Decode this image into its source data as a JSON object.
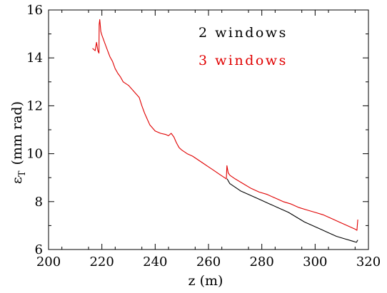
{
  "chart_data": {
    "type": "line",
    "xlabel": "z (m)",
    "ylabel_main": "ε",
    "ylabel_sub": "T",
    "ylabel_units": "(mm rad)",
    "xlim": [
      200,
      320
    ],
    "ylim": [
      6,
      16
    ],
    "xticks": [
      200,
      220,
      240,
      260,
      280,
      300,
      320
    ],
    "yticks": [
      6,
      8,
      10,
      12,
      14,
      16
    ],
    "legend_placement": "top-right",
    "series": [
      {
        "name": "2 windows",
        "color": "#000000",
        "x": [
          267,
          268,
          270,
          272,
          275,
          278,
          280,
          283,
          286,
          290,
          293,
          296,
          299,
          302,
          305,
          308,
          311,
          314,
          315.5,
          316
        ],
        "y": [
          8.95,
          8.75,
          8.6,
          8.45,
          8.3,
          8.15,
          8.05,
          7.9,
          7.75,
          7.55,
          7.35,
          7.15,
          7.0,
          6.85,
          6.7,
          6.55,
          6.45,
          6.35,
          6.3,
          6.4
        ]
      },
      {
        "name": "3 windows",
        "color": "#e00000",
        "x": [
          216.5,
          217.5,
          218,
          218.5,
          218.9,
          219.0,
          219.2,
          219.6,
          220,
          221,
          222,
          223,
          224,
          225,
          226,
          227,
          228,
          230,
          232,
          234,
          235,
          236,
          237,
          238,
          240,
          242,
          244,
          245,
          246,
          247,
          248,
          249,
          250,
          252,
          254,
          256,
          258,
          260,
          262,
          264,
          266,
          266.7,
          266.9,
          267.0,
          267.4,
          268,
          270,
          273,
          276,
          279,
          282,
          285,
          288,
          291,
          294,
          297,
          300,
          303,
          306,
          309,
          312,
          315,
          315.7,
          316
        ],
        "y": [
          14.4,
          14.3,
          14.65,
          14.3,
          14.2,
          15.4,
          15.6,
          15.1,
          14.95,
          14.65,
          14.35,
          14.05,
          13.85,
          13.55,
          13.35,
          13.2,
          13.0,
          12.85,
          12.6,
          12.35,
          12.0,
          11.7,
          11.45,
          11.2,
          10.95,
          10.85,
          10.8,
          10.75,
          10.85,
          10.7,
          10.45,
          10.25,
          10.15,
          10.0,
          9.9,
          9.75,
          9.6,
          9.45,
          9.3,
          9.15,
          9.0,
          8.95,
          9.5,
          9.45,
          9.2,
          9.1,
          8.95,
          8.75,
          8.55,
          8.4,
          8.3,
          8.15,
          8.0,
          7.9,
          7.75,
          7.65,
          7.55,
          7.45,
          7.3,
          7.15,
          7.0,
          6.85,
          6.8,
          7.25
        ]
      }
    ]
  }
}
